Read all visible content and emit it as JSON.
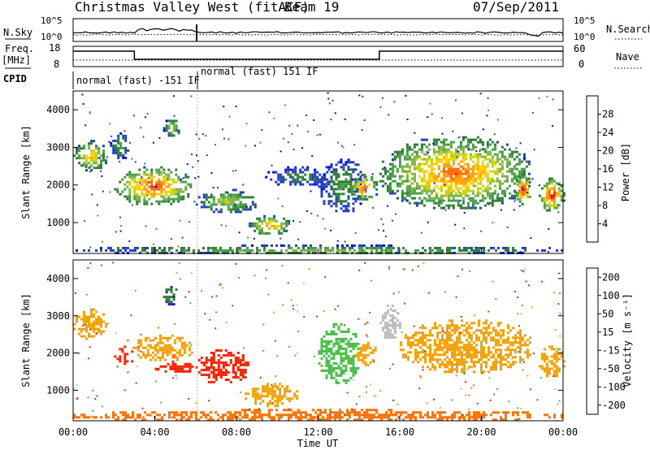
{
  "header": {
    "station": "Christmas Valley West (fitACF)",
    "beam": "Beam 19",
    "date": "07/Sep/2011"
  },
  "strip": {
    "nsky_label": "N.Sky",
    "nsearch_label": "N.Search",
    "noise_ticks": [
      "10^5",
      "10^0"
    ],
    "freq_label": "Freq.",
    "freq_unit": "[MHz]",
    "freq_ticks": [
      "18",
      "8"
    ],
    "nave_label": "Nave",
    "nave_ticks": [
      "60",
      "0"
    ],
    "cpid_label": "CPID",
    "cpid_segments": [
      "normal (fast) -151 IF",
      "normal (fast) 151 IF"
    ]
  },
  "colors": {
    "power": [
      "#0000ff",
      "#1f3fbf",
      "#2e7d32",
      "#43a047",
      "#7cb342",
      "#c6d400",
      "#ffd000",
      "#ffa000",
      "#ff6a00",
      "#ff2a00",
      "#e00000"
    ],
    "velocity": [
      "#2020c0",
      "#2e7d32",
      "#46c046",
      "#bdbdbd",
      "#f4a000",
      "#ff7000",
      "#ff2000"
    ]
  },
  "chart_data": [
    {
      "type": "heatmap",
      "parameter": "power",
      "xlabel": "Time UT",
      "ylabel": "Slant Range [km]",
      "xlim": [
        0,
        24
      ],
      "ylim": [
        180,
        4500
      ],
      "y_ticks": [
        "1000",
        "2000",
        "3000",
        "4000"
      ],
      "colorbar_label": "Power [dB]",
      "colorbar_ticks": [
        "4",
        "8",
        "12",
        "16",
        "20",
        "24",
        "28"
      ],
      "regions": [
        {
          "t0": 0.0,
          "t1": 1.6,
          "r0": 2400,
          "r1": 3200,
          "peak": 20
        },
        {
          "t0": 1.8,
          "t1": 2.7,
          "r0": 2700,
          "r1": 3400,
          "peak": 8
        },
        {
          "t0": 2.0,
          "t1": 5.8,
          "r0": 1500,
          "r1": 2500,
          "peak": 26
        },
        {
          "t0": 4.4,
          "t1": 5.2,
          "r0": 3300,
          "r1": 3800,
          "peak": 14
        },
        {
          "t0": 6.0,
          "t1": 9.0,
          "r0": 1300,
          "r1": 1900,
          "peak": 14
        },
        {
          "t0": 8.6,
          "t1": 10.6,
          "r0": 700,
          "r1": 1200,
          "peak": 22
        },
        {
          "t0": 9.4,
          "t1": 12.5,
          "r0": 2000,
          "r1": 2500,
          "peak": 6
        },
        {
          "t0": 12.0,
          "t1": 14.3,
          "r0": 1300,
          "r1": 2700,
          "peak": 8
        },
        {
          "t0": 13.5,
          "t1": 14.9,
          "r0": 1600,
          "r1": 2300,
          "peak": 24
        },
        {
          "t0": 15.0,
          "t1": 22.4,
          "r0": 1400,
          "r1": 3300,
          "peak": 24
        },
        {
          "t0": 21.6,
          "t1": 22.4,
          "r0": 1500,
          "r1": 2300,
          "peak": 28
        },
        {
          "t0": 22.8,
          "t1": 24.0,
          "r0": 1300,
          "r1": 2200,
          "peak": 28
        },
        {
          "t0": 0.0,
          "t1": 24.0,
          "r0": 180,
          "r1": 420,
          "peak": 12
        }
      ]
    },
    {
      "type": "heatmap",
      "parameter": "velocity",
      "xlabel": "Time UT",
      "ylabel": "Slant Range [km]",
      "xlim": [
        0,
        24
      ],
      "ylim": [
        180,
        4500
      ],
      "x_ticks": [
        "00:00",
        "04:00",
        "08:00",
        "12:00",
        "16:00",
        "20:00",
        "00:00"
      ],
      "y_ticks": [
        "1000",
        "2000",
        "3000",
        "4000"
      ],
      "colorbar_label": "Velocity [m s⁻¹]",
      "colorbar_ticks": [
        "200",
        "100",
        "50",
        "15",
        "-15",
        "-50",
        "-100",
        "-200"
      ],
      "regions": [
        {
          "t0": 0.0,
          "t1": 1.6,
          "r0": 2400,
          "r1": 3200,
          "vel": 0
        },
        {
          "t0": 2.0,
          "t1": 2.9,
          "r0": 1700,
          "r1": 2200,
          "vel": -200
        },
        {
          "t0": 2.9,
          "t1": 5.8,
          "r0": 1800,
          "r1": 2500,
          "vel": 0
        },
        {
          "t0": 4.4,
          "t1": 5.1,
          "r0": 3300,
          "r1": 3800,
          "vel": 200
        },
        {
          "t0": 4.0,
          "t1": 6.0,
          "r0": 1500,
          "r1": 1800,
          "vel": -60
        },
        {
          "t0": 6.0,
          "t1": 8.6,
          "r0": 1200,
          "r1": 2100,
          "vel": -120
        },
        {
          "t0": 8.4,
          "t1": 11.0,
          "r0": 600,
          "r1": 1200,
          "vel": 0
        },
        {
          "t0": 12.0,
          "t1": 14.0,
          "r0": 1200,
          "r1": 2800,
          "vel": 60
        },
        {
          "t0": 13.8,
          "t1": 14.9,
          "r0": 1700,
          "r1": 2300,
          "vel": 0
        },
        {
          "t0": 15.0,
          "t1": 16.0,
          "r0": 2400,
          "r1": 3300,
          "vel": 40
        },
        {
          "t0": 16.0,
          "t1": 22.4,
          "r0": 1500,
          "r1": 2900,
          "vel": 0
        },
        {
          "t0": 22.8,
          "t1": 24.0,
          "r0": 1400,
          "r1": 2200,
          "vel": 0
        },
        {
          "t0": 0.0,
          "t1": 24.0,
          "r0": 180,
          "r1": 500,
          "vel": -40
        }
      ]
    }
  ]
}
